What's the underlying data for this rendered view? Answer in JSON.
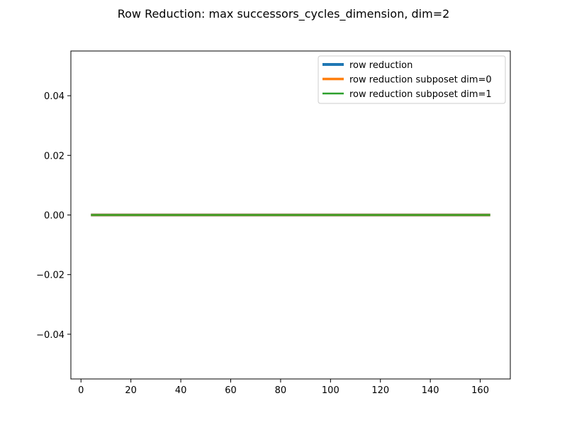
{
  "chart_data": {
    "type": "line",
    "title": "Row Reduction: max successors_cycles_dimension, dim=2",
    "xlabel": "",
    "ylabel": "",
    "xlim": [
      -4.05,
      172.05
    ],
    "ylim": [
      -0.055,
      0.055
    ],
    "x": [
      4,
      164
    ],
    "xticks": [
      0,
      20,
      40,
      60,
      80,
      100,
      120,
      140,
      160
    ],
    "xtick_labels": [
      "0",
      "20",
      "40",
      "60",
      "80",
      "100",
      "120",
      "140",
      "160"
    ],
    "yticks": [
      -0.04,
      -0.02,
      0.0,
      0.02,
      0.04
    ],
    "ytick_labels": [
      "−0.04",
      "−0.02",
      "0.00",
      "0.02",
      "0.04"
    ],
    "grid": false,
    "legend_position": "top-right",
    "series": [
      {
        "name": "row reduction",
        "values": [
          0,
          0
        ],
        "color": "#1f77b4",
        "linewidth": 4
      },
      {
        "name": "row reduction subposet dim=0",
        "values": [
          0,
          0
        ],
        "color": "#ff7f0e",
        "linewidth": 3.5
      },
      {
        "name": "row reduction subposet dim=1",
        "values": [
          0,
          0
        ],
        "color": "#2ca02c",
        "linewidth": 2.5
      }
    ]
  }
}
